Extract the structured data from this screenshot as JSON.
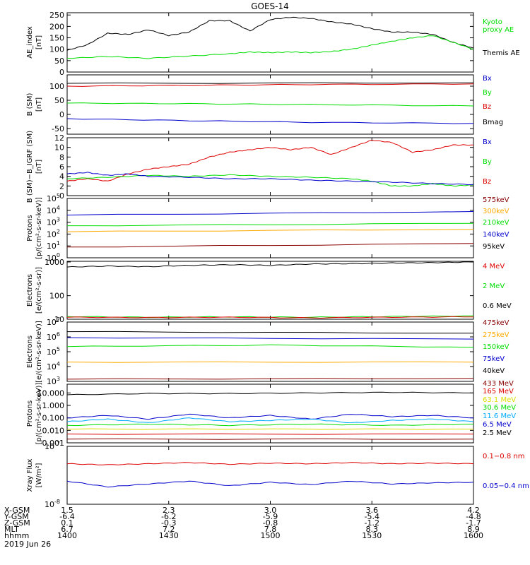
{
  "title": "GOES-14",
  "chart_data": [
    {
      "type": "line",
      "ylabel": "AE_index\n[nT]",
      "ylim": [
        0,
        260
      ],
      "yticks": [
        "0",
        "50",
        "100",
        "150",
        "200",
        "250"
      ],
      "legend": [
        {
          "text": "Kyoto\nproxy AE",
          "color": "#00dd00"
        },
        {
          "text": "Themis AE",
          "color": "#000000"
        }
      ],
      "series": [
        {
          "color": "#000000",
          "x": [
            0,
            0.05,
            0.1,
            0.15,
            0.2,
            0.25,
            0.3,
            0.35,
            0.4,
            0.45,
            0.5,
            0.55,
            0.6,
            0.65,
            0.7,
            0.75,
            0.8,
            0.85,
            0.9,
            0.95,
            1.0
          ],
          "y": [
            95,
            120,
            170,
            165,
            185,
            160,
            175,
            225,
            225,
            180,
            230,
            240,
            235,
            220,
            210,
            190,
            175,
            175,
            165,
            130,
            105
          ]
        },
        {
          "color": "#00dd00",
          "x": [
            0,
            0.1,
            0.2,
            0.3,
            0.4,
            0.45,
            0.5,
            0.55,
            0.6,
            0.65,
            0.7,
            0.75,
            0.8,
            0.85,
            0.9,
            0.95,
            1.0
          ],
          "y": [
            60,
            68,
            60,
            70,
            80,
            88,
            85,
            88,
            85,
            90,
            100,
            118,
            135,
            150,
            160,
            130,
            100
          ]
        }
      ]
    },
    {
      "type": "line",
      "ylabel": "B (SM)\n[nT]",
      "ylim": [
        -70,
        140
      ],
      "yticks": [
        "-50",
        "0",
        "50",
        "100"
      ],
      "legend": [
        {
          "text": "Bx",
          "color": "#0000cc"
        },
        {
          "text": "By",
          "color": "#00dd00"
        },
        {
          "text": "Bz",
          "color": "#dd0000"
        },
        {
          "text": "Bmag",
          "color": "#000000"
        }
      ],
      "series": [
        {
          "color": "#000000",
          "x": [
            0,
            1
          ],
          "y": [
            110,
            112
          ]
        },
        {
          "color": "#dd0000",
          "x": [
            0,
            0.3,
            0.6,
            1
          ],
          "y": [
            100,
            103,
            106,
            108
          ]
        },
        {
          "color": "#00dd00",
          "x": [
            0,
            0.3,
            0.6,
            1
          ],
          "y": [
            40,
            38,
            35,
            30
          ]
        },
        {
          "color": "#0000cc",
          "x": [
            0,
            0.3,
            0.6,
            1
          ],
          "y": [
            -15,
            -22,
            -28,
            -32
          ]
        }
      ]
    },
    {
      "type": "line",
      "ylabel": "B (SM)−B_IGRF (SM)\n[nT]",
      "ylim": [
        0,
        12
      ],
      "yticks": [
        "0",
        "2",
        "4",
        "6",
        "8",
        "10",
        "12"
      ],
      "legend": [
        {
          "text": "Bx",
          "color": "#0000cc"
        },
        {
          "text": "By",
          "color": "#00dd00"
        },
        {
          "text": "Bz",
          "color": "#dd0000"
        }
      ],
      "series": [
        {
          "color": "#dd0000",
          "x": [
            0,
            0.05,
            0.1,
            0.15,
            0.2,
            0.25,
            0.3,
            0.35,
            0.4,
            0.45,
            0.5,
            0.55,
            0.6,
            0.65,
            0.7,
            0.75,
            0.8,
            0.85,
            0.9,
            0.95,
            1.0
          ],
          "y": [
            3.0,
            3.5,
            3.0,
            4.5,
            5.5,
            6.0,
            6.5,
            8.0,
            9.0,
            9.5,
            10.0,
            9.5,
            10.0,
            8.5,
            10.0,
            11.5,
            11.0,
            9.0,
            9.5,
            10.5,
            10.5
          ]
        },
        {
          "color": "#00dd00",
          "x": [
            0,
            0.1,
            0.2,
            0.3,
            0.4,
            0.5,
            0.6,
            0.7,
            0.75,
            0.8,
            0.85,
            0.9,
            0.95,
            1.0
          ],
          "y": [
            3.5,
            3.8,
            4.2,
            4.0,
            4.3,
            4.0,
            3.8,
            3.5,
            3.0,
            2.0,
            2.0,
            2.5,
            2.0,
            2.2
          ]
        },
        {
          "color": "#0000cc",
          "x": [
            0,
            0.05,
            0.1,
            0.15,
            0.2,
            0.3,
            0.4,
            0.5,
            0.6,
            0.7,
            0.8,
            0.9,
            1.0
          ],
          "y": [
            4.5,
            4.8,
            4.2,
            4.5,
            4.0,
            3.8,
            3.5,
            3.5,
            3.2,
            3.0,
            2.8,
            2.5,
            2.3
          ]
        }
      ]
    },
    {
      "type": "line",
      "scale": "log",
      "ylabel": "Protons\n[p/(cm²-s-sr-keV)]",
      "ylim": [
        0,
        5
      ],
      "yticklabels": [
        {
          "b": "10",
          "e": "0"
        },
        {
          "b": "10",
          "e": "1"
        },
        {
          "b": "10",
          "e": "2"
        },
        {
          "b": "10",
          "e": "3"
        },
        {
          "b": "10",
          "e": "4"
        },
        {
          "b": "10",
          "e": "5"
        }
      ],
      "legend": [
        {
          "text": "575keV",
          "color": "#880000"
        },
        {
          "text": "300keV",
          "color": "#ffaa00"
        },
        {
          "text": "210keV",
          "color": "#00dd00"
        },
        {
          "text": "140keV",
          "color": "#0000cc"
        },
        {
          "text": "95keV",
          "color": "#000000"
        }
      ],
      "series": [
        {
          "color": "#0000cc",
          "x": [
            0,
            1
          ],
          "y": [
            3.6,
            3.9
          ]
        },
        {
          "color": "#00dd00",
          "x": [
            0,
            1
          ],
          "y": [
            2.7,
            2.9
          ]
        },
        {
          "color": "#ffaa00",
          "x": [
            0,
            1
          ],
          "y": [
            2.2,
            2.4
          ]
        },
        {
          "color": "#880000",
          "x": [
            0,
            1
          ],
          "y": [
            0.9,
            1.2
          ]
        }
      ]
    },
    {
      "type": "line",
      "scale": "log",
      "ylabel": "Electrons\n[e/(cm²-s-sr)]",
      "ylim": [
        1.3,
        3.02
      ],
      "yticks": [
        "1000",
        "100",
        "10"
      ],
      "yticks_pos": [
        3,
        2,
        1.3
      ],
      "legend": [
        {
          "text": "4 MeV",
          "color": "#dd0000"
        },
        {
          "text": "2 MeV",
          "color": "#00dd00"
        },
        {
          "text": "0.6 MeV",
          "color": "#000000"
        }
      ],
      "series": [
        {
          "color": "#000000",
          "x": [
            0,
            0.1,
            0.2,
            0.3,
            0.4,
            0.5,
            0.6,
            0.7,
            0.8,
            0.9,
            1.0
          ],
          "y": [
            2.85,
            2.88,
            2.86,
            2.9,
            2.92,
            2.9,
            2.94,
            2.95,
            2.97,
            2.98,
            3.0
          ]
        },
        {
          "color": "#00dd00",
          "x": [
            0,
            0.2,
            0.4,
            0.6,
            0.8,
            1.0
          ],
          "y": [
            1.38,
            1.36,
            1.37,
            1.36,
            1.38,
            1.4
          ]
        },
        {
          "color": "#dd0000",
          "x": [
            0,
            0.2,
            0.4,
            0.6,
            0.8,
            1.0
          ],
          "y": [
            1.36,
            1.35,
            1.36,
            1.34,
            1.36,
            1.37
          ]
        }
      ]
    },
    {
      "type": "line",
      "scale": "log",
      "ylabel": "Electrons\n[e/(cm²-s-sr-keV)]",
      "ylim": [
        3,
        7
      ],
      "yticklabels": [
        {
          "b": "10",
          "e": "3"
        },
        {
          "b": "10",
          "e": "4"
        },
        {
          "b": "10",
          "e": "5"
        },
        {
          "b": "10",
          "e": "6"
        },
        {
          "b": "10",
          "e": "7"
        }
      ],
      "legend": [
        {
          "text": "475keV",
          "color": "#880000"
        },
        {
          "text": "275keV",
          "color": "#ffaa00"
        },
        {
          "text": "150keV",
          "color": "#00dd00"
        },
        {
          "text": "75keV",
          "color": "#0000cc"
        },
        {
          "text": "40keV",
          "color": "#000000"
        }
      ],
      "series": [
        {
          "color": "#000000",
          "x": [
            0,
            1
          ],
          "y": [
            6.35,
            6.25
          ]
        },
        {
          "color": "#0000cc",
          "x": [
            0,
            1
          ],
          "y": [
            5.95,
            5.85
          ]
        },
        {
          "color": "#00dd00",
          "x": [
            0,
            0.5,
            1
          ],
          "y": [
            5.35,
            5.45,
            5.3
          ]
        },
        {
          "color": "#ffaa00",
          "x": [
            0,
            1
          ],
          "y": [
            4.3,
            4.3
          ]
        },
        {
          "color": "#880000",
          "x": [
            0,
            1
          ],
          "y": [
            3.15,
            3.2
          ]
        }
      ]
    },
    {
      "type": "line",
      "scale": "log",
      "ylabel": "Protons\n[p/(cm²-s-sr-keV)]",
      "ylim": [
        -3,
        1.7
      ],
      "yticks": [
        "10.000",
        "1.000",
        "0.100",
        "0.010",
        "0.001"
      ],
      "yticks_pos": [
        1,
        0,
        -1,
        -2,
        -3
      ],
      "legend": [
        {
          "text": "433 MeV",
          "color": "#880000"
        },
        {
          "text": "165 MeV",
          "color": "#dd0000"
        },
        {
          "text": "63.1 MeV",
          "color": "#dddd00"
        },
        {
          "text": "30.6 MeV",
          "color": "#00dd00"
        },
        {
          "text": "11.6 MeV",
          "color": "#00aaff"
        },
        {
          "text": "6.5 MeV",
          "color": "#0000cc"
        },
        {
          "text": "2.5 MeV",
          "color": "#000000"
        }
      ],
      "series": [
        {
          "color": "#000000",
          "x": [
            0,
            0.2,
            0.4,
            0.6,
            0.8,
            1.0
          ],
          "y": [
            0.85,
            0.95,
            0.95,
            1.0,
            1.05,
            1.0
          ]
        },
        {
          "color": "#0000cc",
          "x": [
            0,
            0.1,
            0.2,
            0.3,
            0.4,
            0.5,
            0.6,
            0.7,
            0.8,
            0.9,
            1.0
          ],
          "y": [
            -1.0,
            -0.8,
            -1.1,
            -0.7,
            -1.0,
            -0.8,
            -1.1,
            -0.7,
            -0.9,
            -0.8,
            -1.0
          ]
        },
        {
          "color": "#00aaff",
          "x": [
            0,
            0.1,
            0.2,
            0.3,
            0.4,
            0.5,
            0.6,
            0.7,
            0.8,
            0.9,
            1.0
          ],
          "y": [
            -1.3,
            -1.1,
            -1.4,
            -1.0,
            -1.3,
            -1.2,
            -1.1,
            -1.4,
            -1.2,
            -1.1,
            -1.3
          ]
        },
        {
          "color": "#00dd00",
          "x": [
            0,
            0.2,
            0.4,
            0.6,
            0.8,
            1.0
          ],
          "y": [
            -1.6,
            -1.5,
            -1.6,
            -1.5,
            -1.6,
            -1.5
          ]
        },
        {
          "color": "#dddd00",
          "x": [
            0,
            0.5,
            1.0
          ],
          "y": [
            -1.9,
            -1.9,
            -1.9
          ]
        },
        {
          "color": "#dd0000",
          "x": [
            0,
            1
          ],
          "y": [
            -2.3,
            -2.3
          ]
        },
        {
          "color": "#880000",
          "x": [
            0,
            1
          ],
          "y": [
            -2.7,
            -2.7
          ]
        }
      ]
    },
    {
      "type": "line",
      "scale": "log",
      "ylabel": "Xray Flux\n[W/m²]",
      "ylim": [
        -8,
        -7
      ],
      "yticklabels": [
        {
          "b": "10",
          "e": "-7"
        },
        {
          "b": "10",
          "e": "-8"
        }
      ],
      "yticks_pos": [
        -7,
        -8
      ],
      "legend": [
        {
          "text": "0.1−0.8 nm",
          "color": "#dd0000"
        },
        {
          "text": "0.05−0.4 nm",
          "color": "#0000cc"
        }
      ],
      "series": [
        {
          "color": "#dd0000",
          "x": [
            0,
            0.1,
            0.2,
            0.3,
            0.4,
            0.5,
            0.6,
            0.7,
            0.8,
            0.9,
            1.0
          ],
          "y": [
            -7.3,
            -7.32,
            -7.3,
            -7.28,
            -7.31,
            -7.29,
            -7.3,
            -7.28,
            -7.3,
            -7.29,
            -7.3
          ]
        },
        {
          "color": "#0000cc",
          "x": [
            0,
            0.1,
            0.2,
            0.3,
            0.4,
            0.5,
            0.6,
            0.7,
            0.8,
            0.9,
            1.0
          ],
          "y": [
            -7.6,
            -7.7,
            -7.65,
            -7.6,
            -7.68,
            -7.62,
            -7.66,
            -7.6,
            -7.65,
            -7.63,
            -7.62
          ]
        }
      ]
    }
  ],
  "x_axis": {
    "rows": [
      {
        "label": "X-GSM",
        "values": [
          "1.5",
          "2.3",
          "3.0",
          "3.6",
          "4.2"
        ]
      },
      {
        "label": "Y-GSM",
        "values": [
          "-6.4",
          "-6.2",
          "-5.9",
          "-5.4",
          "-4.8"
        ]
      },
      {
        "label": "Z-GSM",
        "values": [
          "0.1",
          "-0.3",
          "-0.8",
          "-1.2",
          "-1.7"
        ]
      },
      {
        "label": "MLT",
        "values": [
          "6.7",
          "7.2",
          "7.8",
          "8.3",
          "8.9"
        ]
      },
      {
        "label": "hhmm",
        "values": [
          "1400",
          "1430",
          "1500",
          "1530",
          "1600"
        ]
      }
    ],
    "date": "2019 Jun 26"
  }
}
